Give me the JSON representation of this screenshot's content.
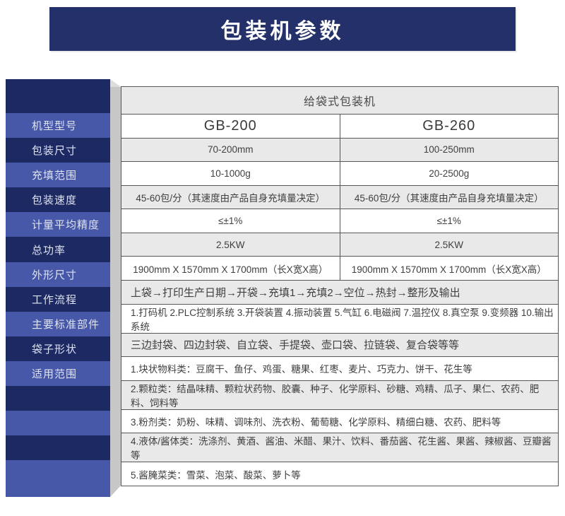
{
  "banner": {
    "title": "包装机参数"
  },
  "sidebar": {
    "items": [
      "机型型号",
      "包装尺寸",
      "充填范围",
      "包装速度",
      "计量平均精度",
      "总功率",
      "外形尺寸",
      "工作流程",
      "主要标准部件",
      "袋子形状",
      "适用范围"
    ]
  },
  "table": {
    "title": "给袋式包装机",
    "model_row": {
      "left": "GB-200",
      "right": "GB-260"
    },
    "spec_rows": [
      {
        "left": "70-200mm",
        "right": "100-250mm"
      },
      {
        "left": "10-1000g",
        "right": "20-2500g"
      },
      {
        "left": "45-60包/分（其速度由产品自身充填量决定）",
        "right": "45-60包/分（其速度由产品自身充填量决定）"
      },
      {
        "left": "≤±1%",
        "right": "≤±1%"
      },
      {
        "left": "2.5KW",
        "right": "2.5KW"
      },
      {
        "left": "1900mm X 1570mm X 1700mm（长X宽X高）",
        "right": "1900mm X 1570mm X 1700mm（长X宽X高）"
      }
    ],
    "full_rows": [
      "上袋→打印生产日期→开袋→充填1→充填2→空位→热封→整形及输出",
      "1.打码机 2.PLC控制系统 3.开袋装置 4.振动装置 5.气缸 6.电磁阀 7.温控仪 8.真空泵 9.变频器 10.输出系统",
      "三边封袋、四边封袋、自立袋、手提袋、壶口袋、拉链袋、复合袋等等",
      "1.块状物料类：豆腐干、鱼仔、鸡蛋、糖果、红枣、麦片、巧克力、饼干、花生等",
      "2.颗粒类：结晶味精、颗粒状药物、胶囊、种子、化学原料、砂糖、鸡精、瓜子、果仁、农药、肥料、饲料等",
      "3.粉剂类：奶粉、味精、调味剂、洗衣粉、葡萄糖、化学原料、精细白糖、农药、肥料等",
      "4.液体/酱体类：洗涤剂、黄酒、酱油、米醋、果汁、饮料、番茄酱、花生酱、果酱、辣椒酱、豆瓣酱等",
      "5.酱腌菜类：雪菜、泡菜、酸菜、萝卜等"
    ]
  },
  "colors": {
    "banner_navy": "#233069",
    "sidebar_dark": "#1d2963",
    "sidebar_light": "#4758a8",
    "row_gray": "#e9e9e9",
    "row_white": "#ffffff",
    "border_gray": "#565656",
    "strip_gray": "#c7c7c7",
    "sidebar_text": "#dde2f2",
    "table_text": "#3f3f3f"
  }
}
